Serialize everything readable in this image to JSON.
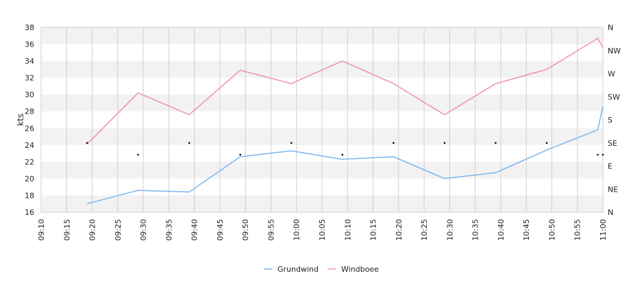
{
  "chart_data": {
    "type": "line",
    "ylabel": "kts",
    "ylim": [
      16,
      38
    ],
    "yticks": [
      16,
      18,
      20,
      22,
      24,
      26,
      28,
      30,
      32,
      34,
      36,
      38
    ],
    "xlim_minutes": [
      550,
      660
    ],
    "xticks": [
      "09:10",
      "09:15",
      "09:20",
      "09:25",
      "09:30",
      "09:35",
      "09:40",
      "09:45",
      "09:50",
      "09:55",
      "10:00",
      "10:05",
      "10:10",
      "10:15",
      "10:20",
      "10:25",
      "10:30",
      "10:35",
      "10:40",
      "10:45",
      "10:50",
      "10:55",
      "11:00"
    ],
    "direction_axis": {
      "labels": [
        "N",
        "NE",
        "E",
        "SE",
        "S",
        "SW",
        "W",
        "NW",
        "N"
      ],
      "range_degrees": [
        0,
        360
      ]
    },
    "legend_placement": "bottom",
    "grid": true,
    "series": [
      {
        "name": "Grundwind",
        "color": "#7cb5ec",
        "points": [
          [
            "09:19",
            17.0
          ],
          [
            "09:29",
            18.6
          ],
          [
            "09:39",
            18.4
          ],
          [
            "09:49",
            22.6
          ],
          [
            "09:59",
            23.3
          ],
          [
            "10:09",
            22.3
          ],
          [
            "10:19",
            22.6
          ],
          [
            "10:29",
            20.0
          ],
          [
            "10:39",
            20.7
          ],
          [
            "10:49",
            23.4
          ],
          [
            "10:59",
            25.8
          ],
          [
            "11:00",
            28.6
          ]
        ]
      },
      {
        "name": "Windboee",
        "color": "#f08cbe",
        "points": [
          [
            "09:19",
            24.1
          ],
          [
            "09:29",
            30.2
          ],
          [
            "09:39",
            27.6
          ],
          [
            "09:49",
            32.9
          ],
          [
            "09:59",
            31.3
          ],
          [
            "10:09",
            34.0
          ],
          [
            "10:19",
            31.3
          ],
          [
            "10:29",
            27.6
          ],
          [
            "10:39",
            31.3
          ],
          [
            "10:49",
            33.0
          ],
          [
            "10:59",
            36.7
          ],
          [
            "11:00",
            35.6
          ]
        ]
      },
      {
        "name": "direction",
        "color": "#000000",
        "marker_only": true,
        "points": [
          [
            "09:19",
            135
          ],
          [
            "09:29",
            112
          ],
          [
            "09:39",
            135
          ],
          [
            "09:49",
            112
          ],
          [
            "09:59",
            135
          ],
          [
            "10:09",
            112
          ],
          [
            "10:19",
            135
          ],
          [
            "10:29",
            135
          ],
          [
            "10:39",
            135
          ],
          [
            "10:49",
            135
          ],
          [
            "10:59",
            112
          ],
          [
            "11:00",
            112
          ]
        ]
      }
    ]
  }
}
